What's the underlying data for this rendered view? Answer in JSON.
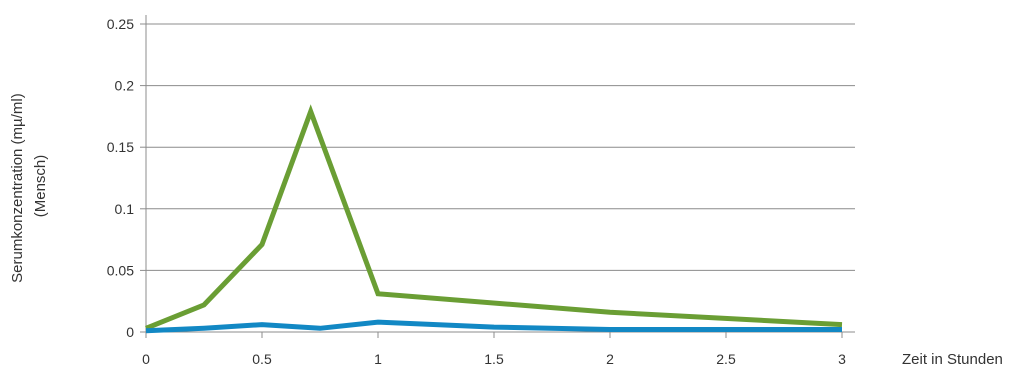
{
  "chart_data": {
    "type": "line",
    "title": "",
    "xlabel": "Zeit in Stunden",
    "ylabel_lines": [
      "Serumkonzentration (mµ/ml)",
      "(Mensch)"
    ],
    "xlim": [
      0,
      3
    ],
    "ylim": [
      0,
      0.25
    ],
    "x_ticks": [
      "0",
      "0.5",
      "1",
      "1.5",
      "2",
      "2.5",
      "3"
    ],
    "y_ticks": [
      "0",
      "0.05",
      "0.1",
      "0.15",
      "0.2",
      "0.25"
    ],
    "grid": "horizontal",
    "legend": "none",
    "series": [
      {
        "color": "#6a9e34",
        "points": [
          [
            0,
            0.003
          ],
          [
            0.25,
            0.022
          ],
          [
            0.5,
            0.071
          ],
          [
            0.71,
            0.179
          ],
          [
            1,
            0.031
          ],
          [
            2,
            0.016
          ],
          [
            3,
            0.006
          ]
        ]
      },
      {
        "color": "#1288c4",
        "points": [
          [
            0,
            0.001
          ],
          [
            0.25,
            0.003
          ],
          [
            0.5,
            0.006
          ],
          [
            0.75,
            0.003
          ],
          [
            1,
            0.008
          ],
          [
            1.5,
            0.004
          ],
          [
            2,
            0.002
          ],
          [
            3,
            0.002
          ]
        ]
      }
    ]
  }
}
